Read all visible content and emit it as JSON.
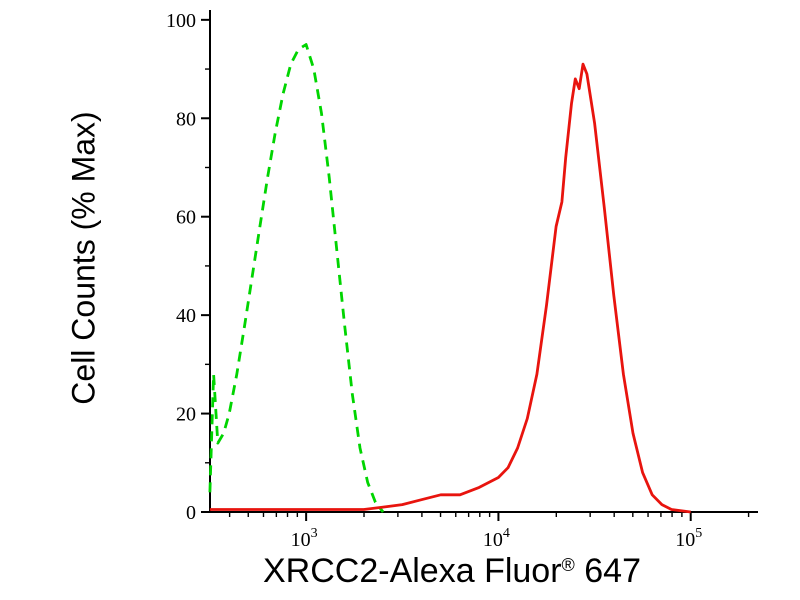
{
  "chart_data": {
    "type": "line",
    "subtype": "flow-cytometry-histogram-overlay",
    "title": "",
    "xlabel": {
      "text": "XRCC2-Alexa Fluor",
      "sup": "®",
      "tail": " 647"
    },
    "ylabel": "Cell Counts (% Max)",
    "x_scale": "log10",
    "x_range_log10": [
      2.5,
      5.35
    ],
    "y_range": [
      0,
      102
    ],
    "y_ticks_major": [
      0,
      20,
      40,
      60,
      80,
      100
    ],
    "y_minor_step": 10,
    "x_ticks_major": [
      {
        "value": 1000,
        "base": "10",
        "exp": "3"
      },
      {
        "value": 10000,
        "base": "10",
        "exp": "4"
      },
      {
        "value": 100000,
        "base": "10",
        "exp": "5"
      }
    ],
    "axis_color": "#000000",
    "background": "#ffffff",
    "grid": false,
    "legend": "none",
    "series": [
      {
        "name": "green-dashed",
        "color": "#00d500",
        "style": "dashed",
        "width": 2.8,
        "points": [
          [
            316,
            4
          ],
          [
            330,
            28
          ],
          [
            347,
            14
          ],
          [
            372,
            16
          ],
          [
            398,
            20
          ],
          [
            436,
            28
          ],
          [
            479,
            38
          ],
          [
            525,
            48
          ],
          [
            575,
            58
          ],
          [
            630,
            68
          ],
          [
            690,
            77
          ],
          [
            759,
            85
          ],
          [
            832,
            91
          ],
          [
            912,
            94
          ],
          [
            1000,
            95
          ],
          [
            1096,
            90
          ],
          [
            1202,
            81
          ],
          [
            1318,
            68
          ],
          [
            1445,
            53
          ],
          [
            1585,
            38
          ],
          [
            1738,
            24
          ],
          [
            1905,
            13
          ],
          [
            2089,
            6
          ],
          [
            2291,
            2
          ],
          [
            2512,
            0
          ]
        ]
      },
      {
        "name": "red-solid",
        "color": "#e8140e",
        "style": "solid",
        "width": 2.8,
        "points": [
          [
            316,
            0.5
          ],
          [
            1000,
            0.5
          ],
          [
            1995,
            0.5
          ],
          [
            2512,
            1
          ],
          [
            3162,
            1.5
          ],
          [
            3981,
            2.5
          ],
          [
            5012,
            3.5
          ],
          [
            6310,
            3.5
          ],
          [
            7943,
            5
          ],
          [
            10000,
            7
          ],
          [
            11220,
            9
          ],
          [
            12589,
            13
          ],
          [
            14125,
            19
          ],
          [
            15849,
            28
          ],
          [
            17783,
            42
          ],
          [
            19953,
            58
          ],
          [
            21380,
            63
          ],
          [
            22387,
            72
          ],
          [
            23988,
            83
          ],
          [
            25119,
            88
          ],
          [
            26303,
            86
          ],
          [
            27542,
            91
          ],
          [
            28840,
            89
          ],
          [
            31623,
            79
          ],
          [
            35481,
            62
          ],
          [
            39811,
            44
          ],
          [
            44668,
            28
          ],
          [
            50119,
            16
          ],
          [
            56234,
            8
          ],
          [
            63096,
            3.5
          ],
          [
            70795,
            1.5
          ],
          [
            79433,
            0.5
          ],
          [
            100000,
            0
          ]
        ]
      }
    ]
  }
}
